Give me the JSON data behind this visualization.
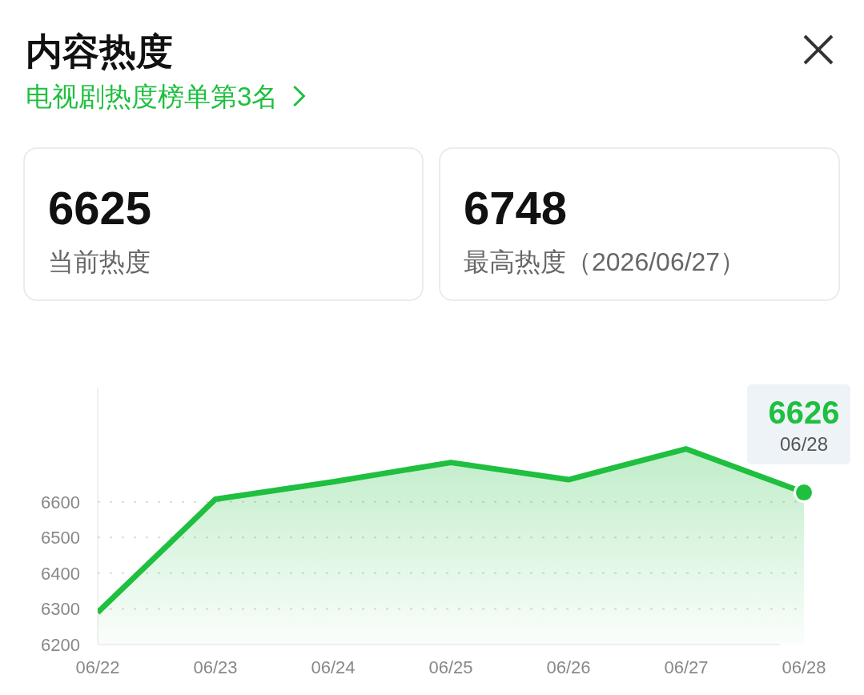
{
  "chart_data": {
    "type": "area",
    "title": "内容热度",
    "subtitle": "电视剧热度榜单第3名",
    "categories": [
      "06/22",
      "06/23",
      "06/24",
      "06/25",
      "06/26",
      "06/27",
      "06/28"
    ],
    "series": [
      {
        "color": "#1fbf3f",
        "values": [
          6290,
          6607,
          6656,
          6710,
          6662,
          6748,
          6626
        ]
      }
    ],
    "ylim": [
      6200,
      6920
    ],
    "yticks": [
      6200,
      6300,
      6400,
      6500,
      6600
    ],
    "grid": "y",
    "marker": "none",
    "line_style": "solid",
    "annotations": [
      "6625",
      "当前热度",
      "6748",
      "最高热度（2026/06/27）",
      {
        "text": "6626",
        "x": "06/28",
        "y": 6626
      }
    ]
  }
}
